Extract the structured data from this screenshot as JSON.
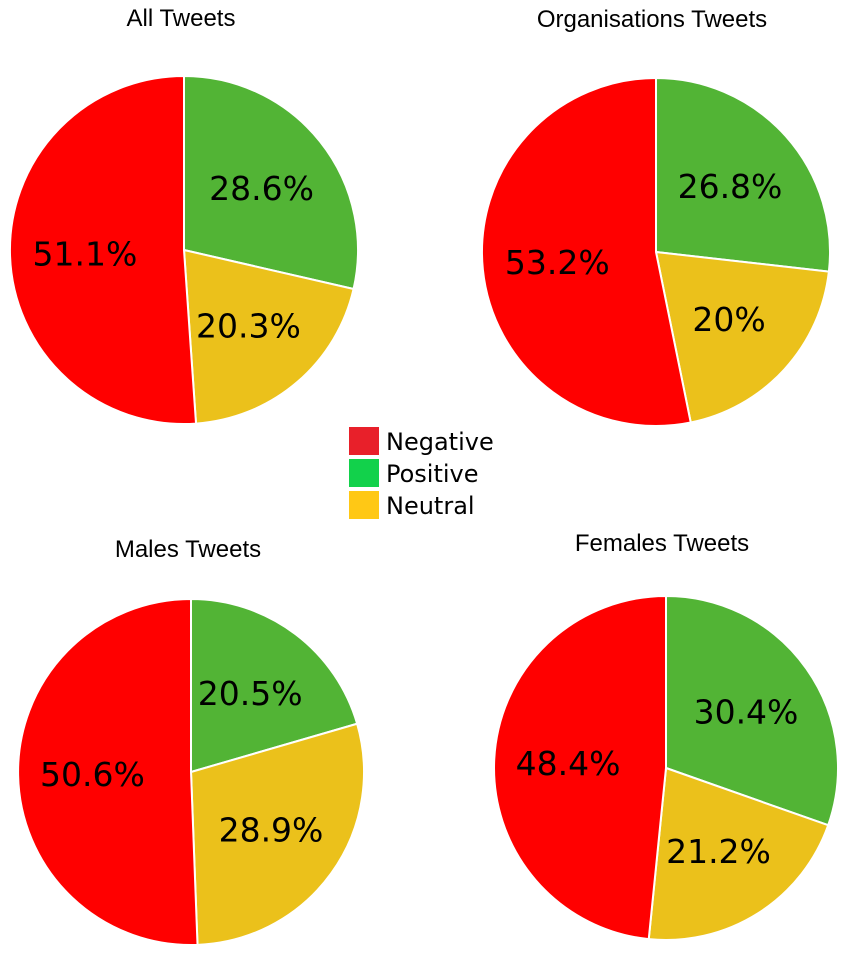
{
  "chart_data": [
    {
      "type": "pie",
      "title": "All Tweets",
      "categories": [
        "Positive",
        "Neutral",
        "Negative"
      ],
      "values": [
        28.6,
        20.3,
        51.1
      ],
      "labels": [
        "28.6%",
        "20.3%",
        "51.1%"
      ],
      "colors": [
        "#52b435",
        "#ebc11b",
        "#ff0000"
      ]
    },
    {
      "type": "pie",
      "title": "Organisations Tweets",
      "categories": [
        "Positive",
        "Neutral",
        "Negative"
      ],
      "values": [
        26.8,
        20,
        53.2
      ],
      "labels": [
        "26.8%",
        "20%",
        "53.2%"
      ],
      "colors": [
        "#52b435",
        "#ebc11b",
        "#ff0000"
      ]
    },
    {
      "type": "pie",
      "title": "Males Tweets",
      "categories": [
        "Positive",
        "Neutral",
        "Negative"
      ],
      "values": [
        20.5,
        28.9,
        50.6
      ],
      "labels": [
        "20.5%",
        "28.9%",
        "50.6%"
      ],
      "colors": [
        "#52b435",
        "#ebc11b",
        "#ff0000"
      ]
    },
    {
      "type": "pie",
      "title": "Females Tweets",
      "categories": [
        "Positive",
        "Neutral",
        "Negative"
      ],
      "values": [
        30.4,
        21.2,
        48.4
      ],
      "labels": [
        "30.4%",
        "21.2%",
        "48.4%"
      ],
      "colors": [
        "#52b435",
        "#ebc11b",
        "#ff0000"
      ]
    }
  ],
  "legend": {
    "items": [
      {
        "label": "Negative",
        "color": "#e8202a"
      },
      {
        "label": "Positive",
        "color": "#12d14b"
      },
      {
        "label": "Neutral",
        "color": "#ffc815"
      }
    ]
  }
}
